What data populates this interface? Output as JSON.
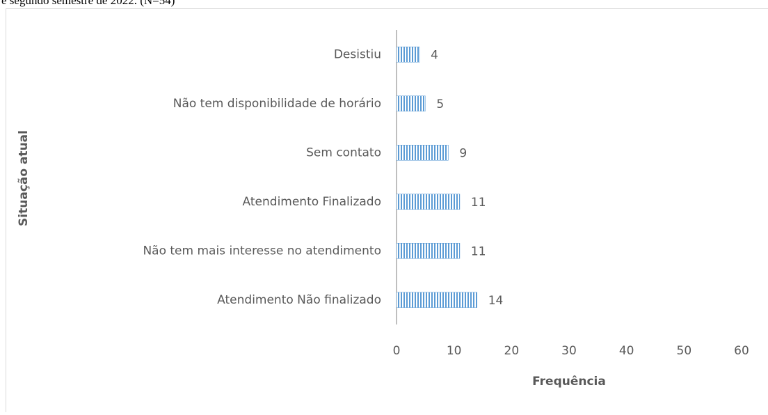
{
  "caption": "e segundo semestre de 2022. (N=54)",
  "chart_data": {
    "type": "bar",
    "orientation": "horizontal",
    "x_label": "Frequência",
    "y_label": "Situação atual",
    "categories": [
      "Desistiu",
      "Não tem disponibilidade de horário",
      "Sem contato",
      "Atendimento Finalizado",
      "Não tem mais interesse no atendimento",
      "Atendimento Não finalizado"
    ],
    "values": [
      4,
      5,
      9,
      11,
      11,
      14
    ],
    "color": "#5b9bd5",
    "xlim": [
      0,
      60
    ],
    "xticks": [
      0,
      10,
      20,
      30,
      40,
      50,
      60
    ],
    "grid": false
  }
}
